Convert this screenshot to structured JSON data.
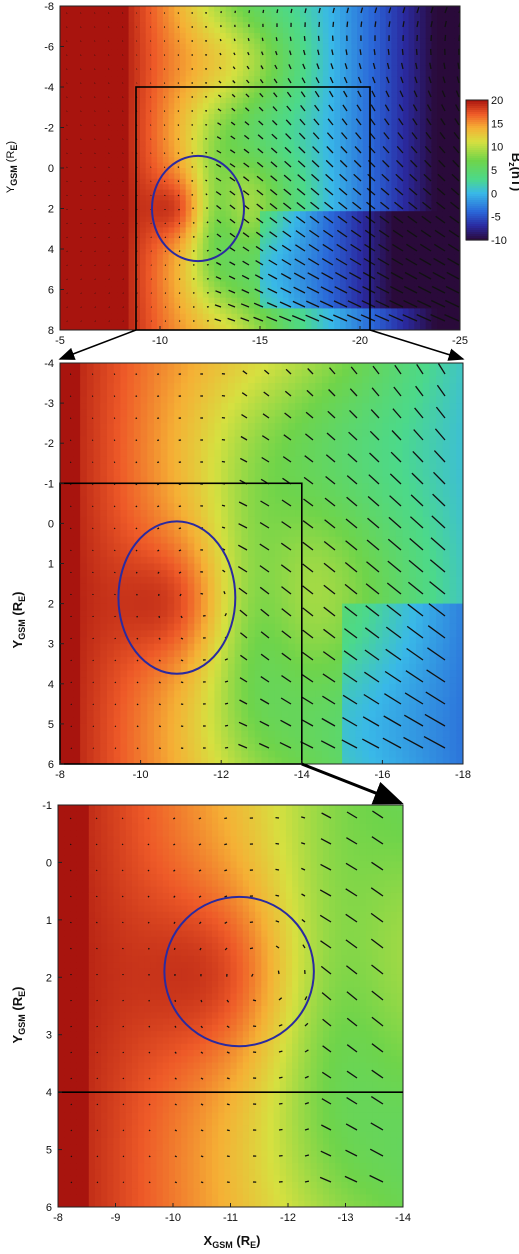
{
  "colorbar": {
    "label": "B",
    "label_sub": "z",
    "label_unit": "(nT)",
    "ticks": [
      "20",
      "15",
      "10",
      "5",
      "0",
      "-5",
      "-10"
    ],
    "stops": [
      {
        "value": -10,
        "color": "#2a0a3a"
      },
      {
        "value": -7,
        "color": "#2a2aa0"
      },
      {
        "value": -4,
        "color": "#2a66d8"
      },
      {
        "value": 0,
        "color": "#39b8e8"
      },
      {
        "value": 3,
        "color": "#4cd98a"
      },
      {
        "value": 7,
        "color": "#6fd44a"
      },
      {
        "value": 11,
        "color": "#d6e040"
      },
      {
        "value": 14,
        "color": "#f5b035"
      },
      {
        "value": 17,
        "color": "#ee5a28"
      },
      {
        "value": 20,
        "color": "#a8140e"
      }
    ]
  },
  "chart_data": [
    {
      "type": "heatmap",
      "panel": "top",
      "title": "",
      "xlabel": "",
      "ylabel": "Y",
      "ylabel_sub": "GSM",
      "ylabel_unit": "(R",
      "ylabel_unit_sub": "E",
      "ylabel_close": ")",
      "xlim": [
        -5,
        -25
      ],
      "ylim": [
        8,
        -8
      ],
      "x_ticks": [
        "-5",
        "-10",
        "-15",
        "-20",
        "-25"
      ],
      "y_ticks": [
        "-8",
        "-6",
        "-4",
        "-2",
        "0",
        "2",
        "4",
        "6",
        "8"
      ],
      "vectors": "bulk flow velocity arrows",
      "circle": {
        "center_x": -11.9,
        "center_y": 2.0,
        "radius_x": 2.3,
        "radius_y": 2.6,
        "color": "#2a2aa0"
      },
      "zoom_box": {
        "x": [
          -8.8,
          -20.5
        ],
        "y": [
          -4,
          8
        ]
      }
    },
    {
      "type": "heatmap",
      "panel": "middle",
      "title": "",
      "xlabel": "",
      "ylabel": "Y",
      "ylabel_sub": "GSM",
      "ylabel_unit": "(R",
      "ylabel_unit_sub": "E",
      "ylabel_close": ")",
      "xlim": [
        -8,
        -18
      ],
      "ylim": [
        6,
        -4
      ],
      "x_ticks": [
        "-8",
        "-10",
        "-12",
        "-14",
        "-16",
        "-18"
      ],
      "y_ticks": [
        "-4",
        "-3",
        "-2",
        "-1",
        "0",
        "1",
        "2",
        "3",
        "4",
        "5",
        "6"
      ],
      "circle": {
        "center_x": -10.9,
        "center_y": 1.85,
        "radius_x": 1.45,
        "radius_y": 1.9,
        "color": "#2a2aa0"
      },
      "zoom_box": {
        "x": [
          -8,
          -14
        ],
        "y": [
          -1,
          6
        ]
      }
    },
    {
      "type": "heatmap",
      "panel": "bottom",
      "title": "",
      "xlabel": "X",
      "xlabel_sub": "GSM",
      "xlabel_unit": "(R",
      "xlabel_unit_sub": "E",
      "xlabel_close": ")",
      "ylabel": "Y",
      "ylabel_sub": "GSM",
      "ylabel_unit": "(R",
      "ylabel_unit_sub": "E",
      "ylabel_close": ")",
      "xlim": [
        -8,
        -14
      ],
      "ylim": [
        6,
        -1
      ],
      "x_ticks": [
        "-8",
        "-9",
        "-10",
        "-11",
        "-12",
        "-13",
        "-14"
      ],
      "y_ticks": [
        "-1",
        "0",
        "1",
        "2",
        "3",
        "4",
        "5",
        "6"
      ],
      "circle": {
        "center_x": -11.15,
        "center_y": 1.9,
        "radius_x": 1.3,
        "radius_y": 1.3,
        "color": "#2a2aa0"
      },
      "line": {
        "y": 4
      }
    }
  ]
}
